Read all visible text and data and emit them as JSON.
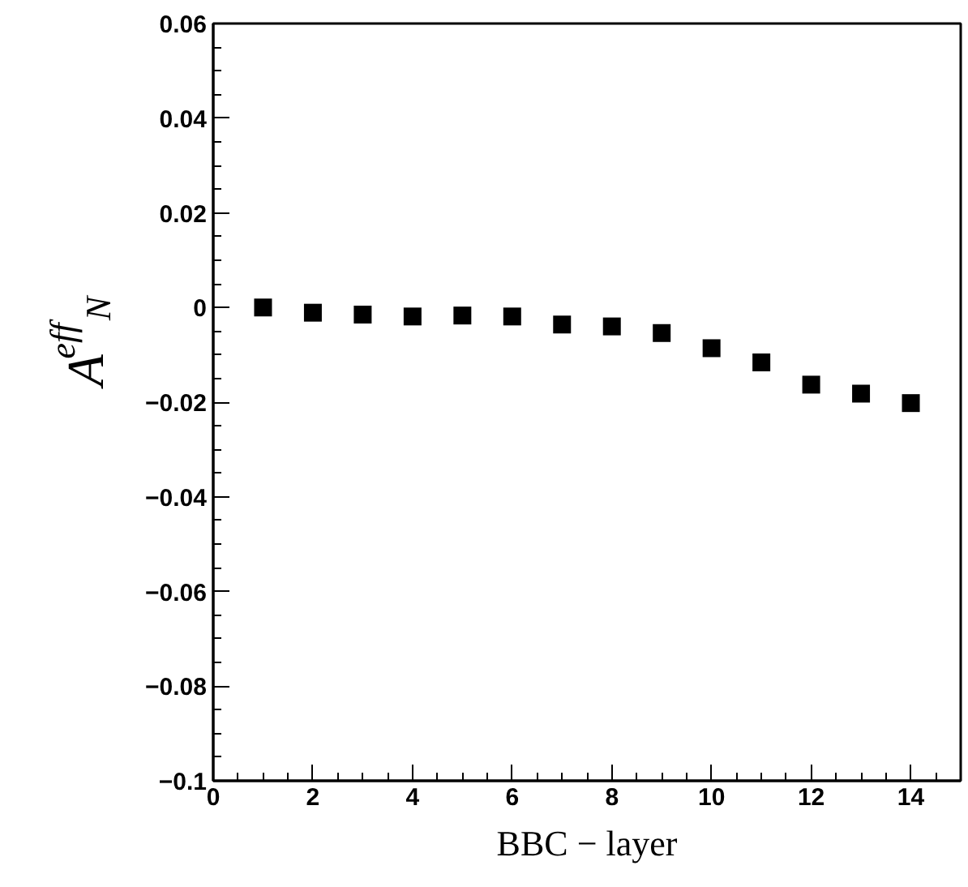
{
  "chart_data": {
    "type": "scatter",
    "xlabel": "BBC − layer",
    "ylabel": "A$^{eff}$$_{N}$",
    "x": [
      1,
      2,
      3,
      4,
      5,
      6,
      7,
      8,
      9,
      10,
      11,
      12,
      13,
      14
    ],
    "series": [
      {
        "color": "#000000",
        "values": [
          0.0,
          -0.0011,
          -0.0015,
          -0.0019,
          -0.0017,
          -0.0019,
          -0.0036,
          -0.004,
          -0.0054,
          -0.0086,
          -0.0116,
          -0.0163,
          -0.0182,
          -0.0202
        ]
      }
    ],
    "marker": "square",
    "xlim": [
      0,
      15
    ],
    "ylim": [
      -0.1,
      0.06
    ],
    "xticks": [
      0,
      2,
      4,
      6,
      8,
      10,
      12,
      14
    ],
    "yticks": [
      {
        "value": -0.1,
        "label": "−0.1"
      },
      {
        "value": -0.08,
        "label": "−0.08"
      },
      {
        "value": -0.06,
        "label": "−0.06"
      },
      {
        "value": -0.04,
        "label": "−0.04"
      },
      {
        "value": -0.02,
        "label": "−0.02"
      },
      0,
      0.02,
      0.04,
      0.06
    ],
    "grid": false
  }
}
